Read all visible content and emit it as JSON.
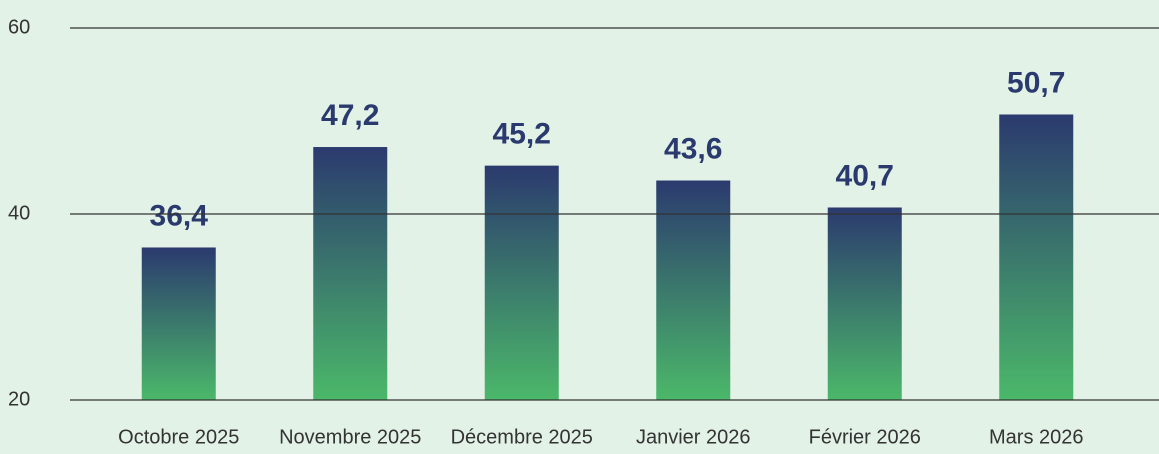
{
  "chart_data": {
    "type": "bar",
    "categories": [
      "Octobre 2025",
      "Novembre 2025",
      "Décembre 2025",
      "Janvier 2026",
      "Février 2026",
      "Mars 2026"
    ],
    "values": [
      36.4,
      47.2,
      45.2,
      43.6,
      40.7,
      50.7
    ],
    "value_labels": [
      "36,4",
      "47,2",
      "45,2",
      "43,6",
      "40,7",
      "50,7"
    ],
    "color": [
      "#2b3a6e",
      "#4bb86a"
    ],
    "ylim": [
      20,
      60
    ],
    "yticks": [
      20,
      40,
      60
    ],
    "grid": true
  }
}
